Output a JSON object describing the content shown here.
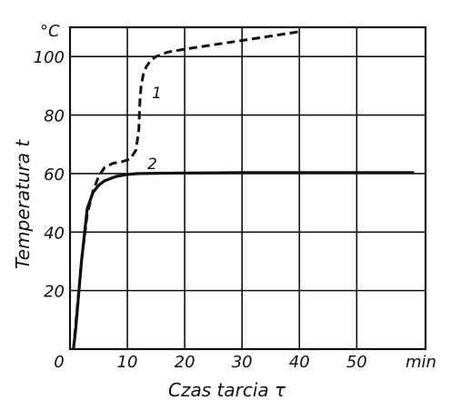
{
  "chart_data": {
    "type": "line",
    "title": "",
    "xlabel": "Czas tarcia τ",
    "ylabel": "Temperatura t",
    "x_unit": "min",
    "y_unit": "°C",
    "xlim": [
      0,
      62
    ],
    "ylim": [
      0,
      110
    ],
    "x_ticks": [
      0,
      10,
      20,
      30,
      40,
      50
    ],
    "y_ticks": [
      20,
      40,
      60,
      80,
      100
    ],
    "x_tick_labels": [
      "0",
      "10",
      "20",
      "30",
      "40",
      "50"
    ],
    "y_tick_labels": [
      "20",
      "40",
      "60",
      "80",
      "100"
    ],
    "grid": true,
    "grid_x": [
      10,
      20,
      30,
      40,
      50
    ],
    "grid_y": [
      20,
      40,
      60,
      80,
      100
    ],
    "series": [
      {
        "name": "1",
        "style": "dashed",
        "x": [
          0.6,
          1.2,
          2,
          3,
          4,
          5,
          6,
          7.5,
          9,
          10.5,
          11.5,
          12,
          12.2,
          12.4,
          12.8,
          13.3,
          14,
          15,
          17,
          20,
          25,
          30,
          35,
          40
        ],
        "y": [
          0,
          13,
          30,
          46,
          54,
          59,
          62,
          63.5,
          64,
          65,
          68,
          75,
          85,
          90,
          94,
          96.5,
          98.5,
          100,
          101.5,
          102.5,
          104,
          105.5,
          107,
          108.5
        ]
      },
      {
        "name": "2",
        "style": "solid",
        "x": [
          0.6,
          1,
          2,
          3,
          4,
          5,
          6,
          8,
          10,
          12,
          15,
          20,
          30,
          40,
          50,
          60
        ],
        "y": [
          0,
          7,
          30,
          48,
          53.5,
          56,
          57.5,
          59,
          59.7,
          60,
          60.1,
          60.2,
          60.3,
          60.3,
          60.3,
          60.3
        ]
      }
    ]
  }
}
